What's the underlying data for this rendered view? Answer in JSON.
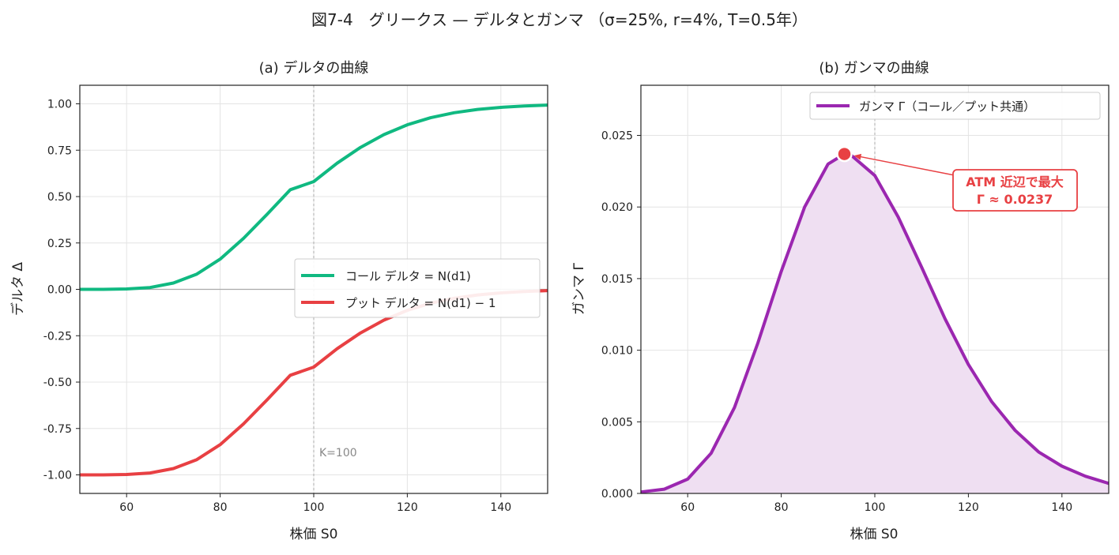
{
  "figure_title": "図7-4　グリークス — デルタとガンマ （σ=25%, r=4%, T=0.5年）",
  "colors": {
    "call": "#10b981",
    "put": "#e84043",
    "gamma": "#9b27b0",
    "gamma_fill": "#efdff2",
    "annotation": "#e84043",
    "strike_line": "#aaaaaa",
    "grid": "#e4e4e4"
  },
  "chart_data": [
    {
      "type": "line",
      "title": "(a) デルタの曲線",
      "xlabel": "株価 S0",
      "ylabel": "デルタ Δ",
      "xlim": [
        50,
        150
      ],
      "ylim": [
        -1.1,
        1.1
      ],
      "xticks": [
        "60",
        "80",
        "100",
        "120",
        "140"
      ],
      "xtick_values": [
        60,
        80,
        100,
        120,
        140
      ],
      "yticks": [
        "1.00",
        "0.75",
        "0.50",
        "0.25",
        "0.00",
        "-0.25",
        "-0.50",
        "-0.75",
        "-1.00"
      ],
      "ytick_values": [
        1.0,
        0.75,
        0.5,
        0.25,
        0.0,
        -0.25,
        -0.5,
        -0.75,
        -1.0
      ],
      "grid": true,
      "legend_position": "center-right",
      "strike_label": "K=100",
      "x": [
        50,
        55,
        60,
        65,
        70,
        75,
        80,
        85,
        90,
        95,
        100,
        105,
        110,
        115,
        120,
        125,
        130,
        135,
        140,
        145,
        150
      ],
      "series": [
        {
          "name": "コール デルタ = N(d1)",
          "values": [
            0.0,
            0.0,
            0.002,
            0.01,
            0.034,
            0.082,
            0.163,
            0.275,
            0.404,
            0.537,
            0.581,
            0.68,
            0.765,
            0.834,
            0.887,
            0.925,
            0.952,
            0.97,
            0.981,
            0.988,
            0.993
          ]
        },
        {
          "name": "プット デルタ = N(d1) − 1",
          "values": [
            -1.0,
            -1.0,
            -0.998,
            -0.99,
            -0.966,
            -0.918,
            -0.837,
            -0.725,
            -0.596,
            -0.463,
            -0.419,
            -0.32,
            -0.235,
            -0.166,
            -0.113,
            -0.075,
            -0.048,
            -0.03,
            -0.019,
            -0.012,
            -0.007
          ]
        }
      ]
    },
    {
      "type": "area",
      "title": "(b) ガンマの曲線",
      "xlabel": "株価 S0",
      "ylabel": "ガンマ Γ",
      "xlim": [
        50,
        150
      ],
      "ylim": [
        0,
        0.0285
      ],
      "xticks": [
        "60",
        "80",
        "100",
        "120",
        "140"
      ],
      "xtick_values": [
        60,
        80,
        100,
        120,
        140
      ],
      "yticks": [
        "0.025",
        "0.020",
        "0.015",
        "0.010",
        "0.005",
        "0.000"
      ],
      "ytick_values": [
        0.025,
        0.02,
        0.015,
        0.01,
        0.005,
        0.0
      ],
      "grid": true,
      "legend_position": "top-right",
      "annotation": {
        "line1": "ATM 近辺で最大",
        "line2": "Γ ≈ 0.0237",
        "point": [
          93.5,
          0.0237
        ]
      },
      "x": [
        50,
        55,
        60,
        65,
        70,
        75,
        80,
        85,
        90,
        93.5,
        95,
        100,
        105,
        110,
        115,
        120,
        125,
        130,
        135,
        140,
        145,
        150
      ],
      "series": [
        {
          "name": "ガンマ Γ（コール／プット共通）",
          "values": [
            0.0001,
            0.0003,
            0.001,
            0.0028,
            0.006,
            0.0105,
            0.0155,
            0.02,
            0.023,
            0.0237,
            0.0236,
            0.0222,
            0.0193,
            0.0158,
            0.0122,
            0.009,
            0.0064,
            0.0044,
            0.0029,
            0.0019,
            0.0012,
            0.0007
          ]
        }
      ]
    }
  ]
}
